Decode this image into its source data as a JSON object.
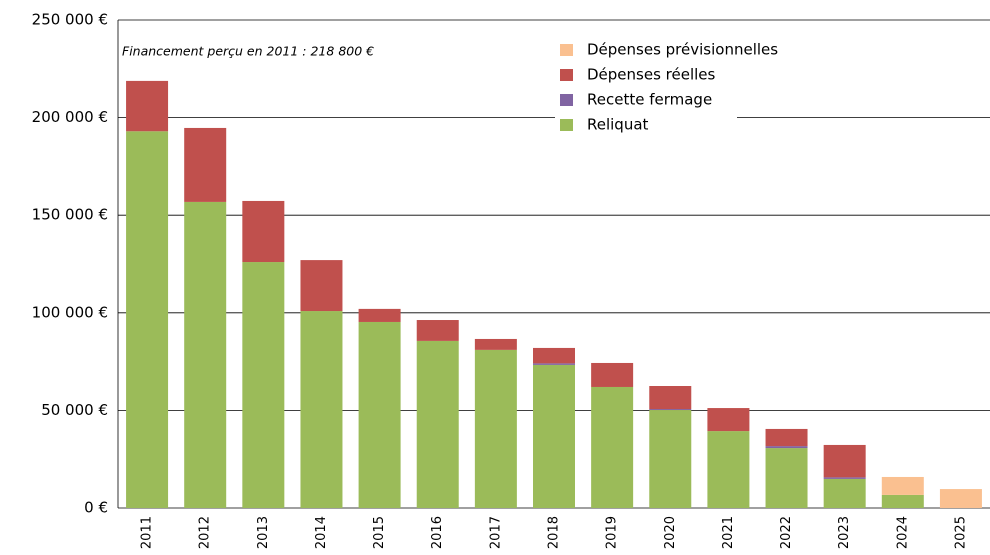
{
  "chart_data": {
    "type": "stacked_bar",
    "annotation": "Financement perçu en 2011 : 218 800 €",
    "categories": [
      "2011",
      "2012",
      "2013",
      "2014",
      "2015",
      "2016",
      "2017",
      "2018",
      "2019",
      "2020",
      "2021",
      "2022",
      "2023",
      "2024",
      "2025"
    ],
    "series": [
      {
        "name": "Reliquat",
        "color": "#9bbb59",
        "values": [
          193000,
          156800,
          126000,
          100900,
          95300,
          85600,
          81000,
          73300,
          62000,
          50200,
          39400,
          30700,
          14900,
          6700,
          0
        ]
      },
      {
        "name": "Recette fermage",
        "color": "#8064a2",
        "values": [
          0,
          0,
          0,
          0,
          0,
          0,
          0,
          800,
          0,
          500,
          0,
          1000,
          800,
          0,
          0
        ]
      },
      {
        "name": "Dépenses réelles",
        "color": "#c0504d",
        "values": [
          25800,
          37900,
          31300,
          26100,
          6700,
          10700,
          5600,
          7900,
          12300,
          11800,
          11800,
          8800,
          16600,
          0,
          0
        ]
      },
      {
        "name": "Dépenses prévisionnelles",
        "color": "#fac090",
        "values": [
          0,
          0,
          0,
          0,
          0,
          0,
          0,
          0,
          0,
          0,
          0,
          0,
          0,
          9200,
          9700
        ]
      }
    ],
    "ylim": [
      0,
      250000
    ],
    "yticks": [
      {
        "value": 0,
        "label": "0 €"
      },
      {
        "value": 50000,
        "label": "50 000 €"
      },
      {
        "value": 100000,
        "label": "100 000 €"
      },
      {
        "value": 150000,
        "label": "150 000 €"
      },
      {
        "value": 200000,
        "label": "200 000 €"
      },
      {
        "value": 250000,
        "label": "250 000 €"
      }
    ],
    "grid": true,
    "legend": "top-right"
  }
}
